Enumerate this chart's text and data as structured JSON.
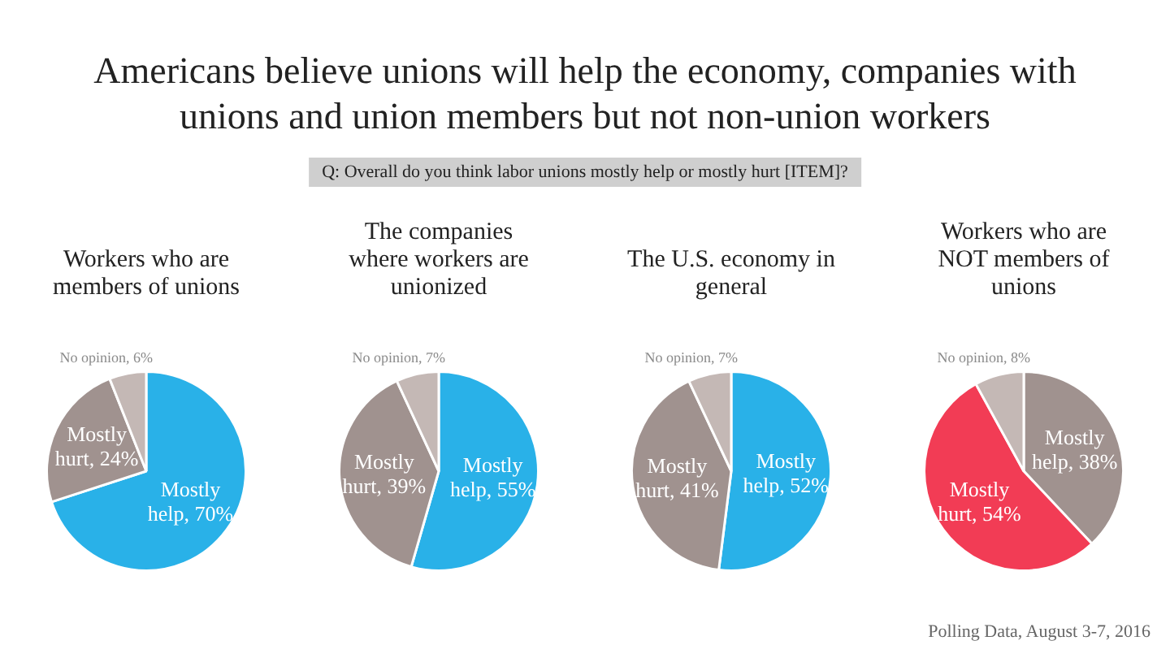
{
  "chart_data": [
    {
      "type": "other",
      "title": "Americans believe unions will help the economy, companies with unions and union members but not non-union workers",
      "subtitle": "Q: Overall do you think labor unions mostly help or mostly hurt [ITEM]?",
      "annotations": [
        "Polling Data, August 3-7, 2016"
      ]
    },
    {
      "type": "pie",
      "title": "Workers who are members of unions",
      "categories": [
        "Mostly help",
        "Mostly hurt",
        "No opinion"
      ],
      "values": [
        70,
        24,
        6
      ],
      "value_labels": [
        "70%",
        "24%",
        "6%"
      ],
      "colors": [
        "#29b1e8",
        "#a0928f",
        "#c4b8b5"
      ]
    },
    {
      "type": "pie",
      "title": "The companies where workers are unionized",
      "categories": [
        "Mostly help",
        "Mostly hurt",
        "No opinion"
      ],
      "values": [
        55,
        39,
        7
      ],
      "value_labels": [
        "55%",
        "39%",
        "7%"
      ],
      "colors": [
        "#29b1e8",
        "#a0928f",
        "#c4b8b5"
      ]
    },
    {
      "type": "pie",
      "title": "The U.S. economy in general",
      "categories": [
        "Mostly help",
        "Mostly hurt",
        "No opinion"
      ],
      "values": [
        52,
        41,
        7
      ],
      "value_labels": [
        "52%",
        "41%",
        "7%"
      ],
      "colors": [
        "#29b1e8",
        "#a0928f",
        "#c4b8b5"
      ]
    },
    {
      "type": "pie",
      "title": "Workers who are NOT members of unions",
      "categories": [
        "Mostly help",
        "Mostly hurt",
        "No opinion"
      ],
      "values": [
        38,
        54,
        8
      ],
      "value_labels": [
        "38%",
        "54%",
        "8%"
      ],
      "colors": [
        "#a0928f",
        "#f23c55",
        "#c4b8b5"
      ]
    }
  ]
}
